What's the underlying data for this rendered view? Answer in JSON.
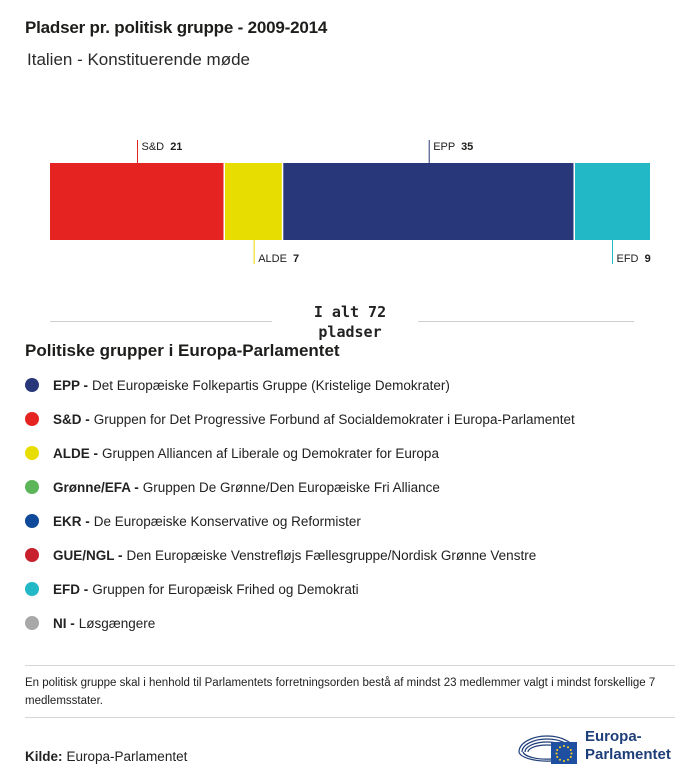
{
  "header": {
    "title": "Pladser pr. politisk gruppe - 2009-2014",
    "subtitle": "Italien - Konstituerende møde"
  },
  "chart_data": {
    "type": "bar",
    "orientation": "horizontal-stacked",
    "title": "Pladser pr. politisk gruppe - 2009-2014",
    "subtitle": "Italien - Konstituerende møde",
    "xlim": [
      0,
      72
    ],
    "grid": false,
    "segments": [
      {
        "label": "S&D",
        "value": 21,
        "color": "#e52421",
        "label_position": "top"
      },
      {
        "label": "ALDE",
        "value": 7,
        "color": "#e8dd00",
        "label_position": "bottom"
      },
      {
        "label": "EPP",
        "value": 35,
        "color": "#283779",
        "label_position": "top"
      },
      {
        "label": "EFD",
        "value": 9,
        "color": "#22b8c6",
        "label_position": "bottom"
      }
    ],
    "total_text": [
      "I alt 72",
      "pladser"
    ]
  },
  "legend": {
    "title": "Politiske grupper i Europa-Parlamentet",
    "items": [
      {
        "abbr": "EPP -",
        "text": "Det Europæiske Folkepartis Gruppe (Kristelige Demokrater)",
        "color": "#283779"
      },
      {
        "abbr": "S&D -",
        "text": "Gruppen for Det Progressive Forbund af Socialdemokrater i Europa-Parlamentet",
        "color": "#e52421"
      },
      {
        "abbr": "ALDE -",
        "text": "Gruppen Alliancen af Liberale og Demokrater for Europa",
        "color": "#e8dd00"
      },
      {
        "abbr": "Grønne/EFA -",
        "text": "Gruppen De Grønne/Den Europæiske Fri Alliance",
        "color": "#5db55a"
      },
      {
        "abbr": "EKR -",
        "text": "De Europæiske Konservative og Reformister",
        "color": "#0f4a9a"
      },
      {
        "abbr": "GUE/NGL -",
        "text": "Den Europæiske Venstrefløjs Fællesgruppe/Nordisk Grønne Venstre",
        "color": "#c8202c"
      },
      {
        "abbr": "EFD -",
        "text": "Gruppen for Europæisk Frihed og Demokrati",
        "color": "#22b8c6"
      },
      {
        "abbr": "NI -",
        "text": "Løsgængere",
        "color": "#a8a8a8"
      }
    ]
  },
  "footer": {
    "note": "En politisk gruppe skal i henhold til Parlamentets forretningsorden bestå af mindst 23 medlemmer valgt i mindst forskellige 7 medlemsstater.",
    "source_label": "Kilde:",
    "source_value": "Europa-Parlamentet",
    "logo_line1": "Europa-",
    "logo_line2": "Parlamentet",
    "logo_icon": "european-parliament-emblem-icon"
  }
}
